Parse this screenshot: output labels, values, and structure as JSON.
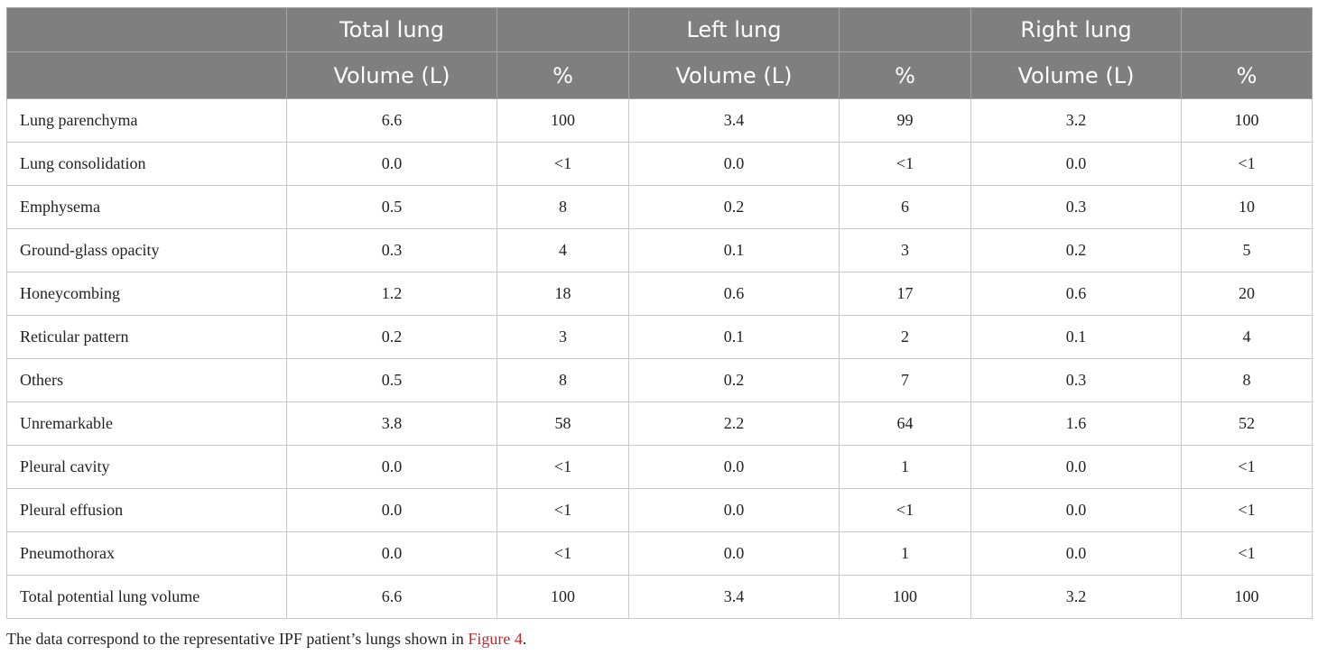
{
  "table": {
    "group_headers": [
      "",
      "Total lung",
      "",
      "Left lung",
      "",
      "Right lung",
      ""
    ],
    "sub_headers": [
      "",
      "Volume (L)",
      "%",
      "Volume (L)",
      "%",
      "Volume (L)",
      "%"
    ],
    "rows": [
      [
        "Lung parenchyma",
        "6.6",
        "100",
        "3.4",
        "99",
        "3.2",
        "100"
      ],
      [
        "Lung consolidation",
        "0.0",
        "<1",
        "0.0",
        "<1",
        "0.0",
        "<1"
      ],
      [
        "Emphysema",
        "0.5",
        "8",
        "0.2",
        "6",
        "0.3",
        "10"
      ],
      [
        "Ground-glass opacity",
        "0.3",
        "4",
        "0.1",
        "3",
        "0.2",
        "5"
      ],
      [
        "Honeycombing",
        "1.2",
        "18",
        "0.6",
        "17",
        "0.6",
        "20"
      ],
      [
        "Reticular pattern",
        "0.2",
        "3",
        "0.1",
        "2",
        "0.1",
        "4"
      ],
      [
        "Others",
        "0.5",
        "8",
        "0.2",
        "7",
        "0.3",
        "8"
      ],
      [
        "Unremarkable",
        "3.8",
        "58",
        "2.2",
        "64",
        "1.6",
        "52"
      ],
      [
        "Pleural cavity",
        "0.0",
        "<1",
        "0.0",
        "1",
        "0.0",
        "<1"
      ],
      [
        "Pleural effusion",
        "0.0",
        "<1",
        "0.0",
        "<1",
        "0.0",
        "<1"
      ],
      [
        "Pneumothorax",
        "0.0",
        "<1",
        "0.0",
        "1",
        "0.0",
        "<1"
      ],
      [
        "Total potential lung volume",
        "6.6",
        "100",
        "3.4",
        "100",
        "3.2",
        "100"
      ]
    ]
  },
  "caption": {
    "text": "The data correspond to the representative IPF patient’s lungs shown in ",
    "link": "Figure 4",
    "end": "."
  },
  "colors": {
    "header_bg": "#7f7f7f",
    "header_text": "#ffffff",
    "link": "#c0282d"
  }
}
